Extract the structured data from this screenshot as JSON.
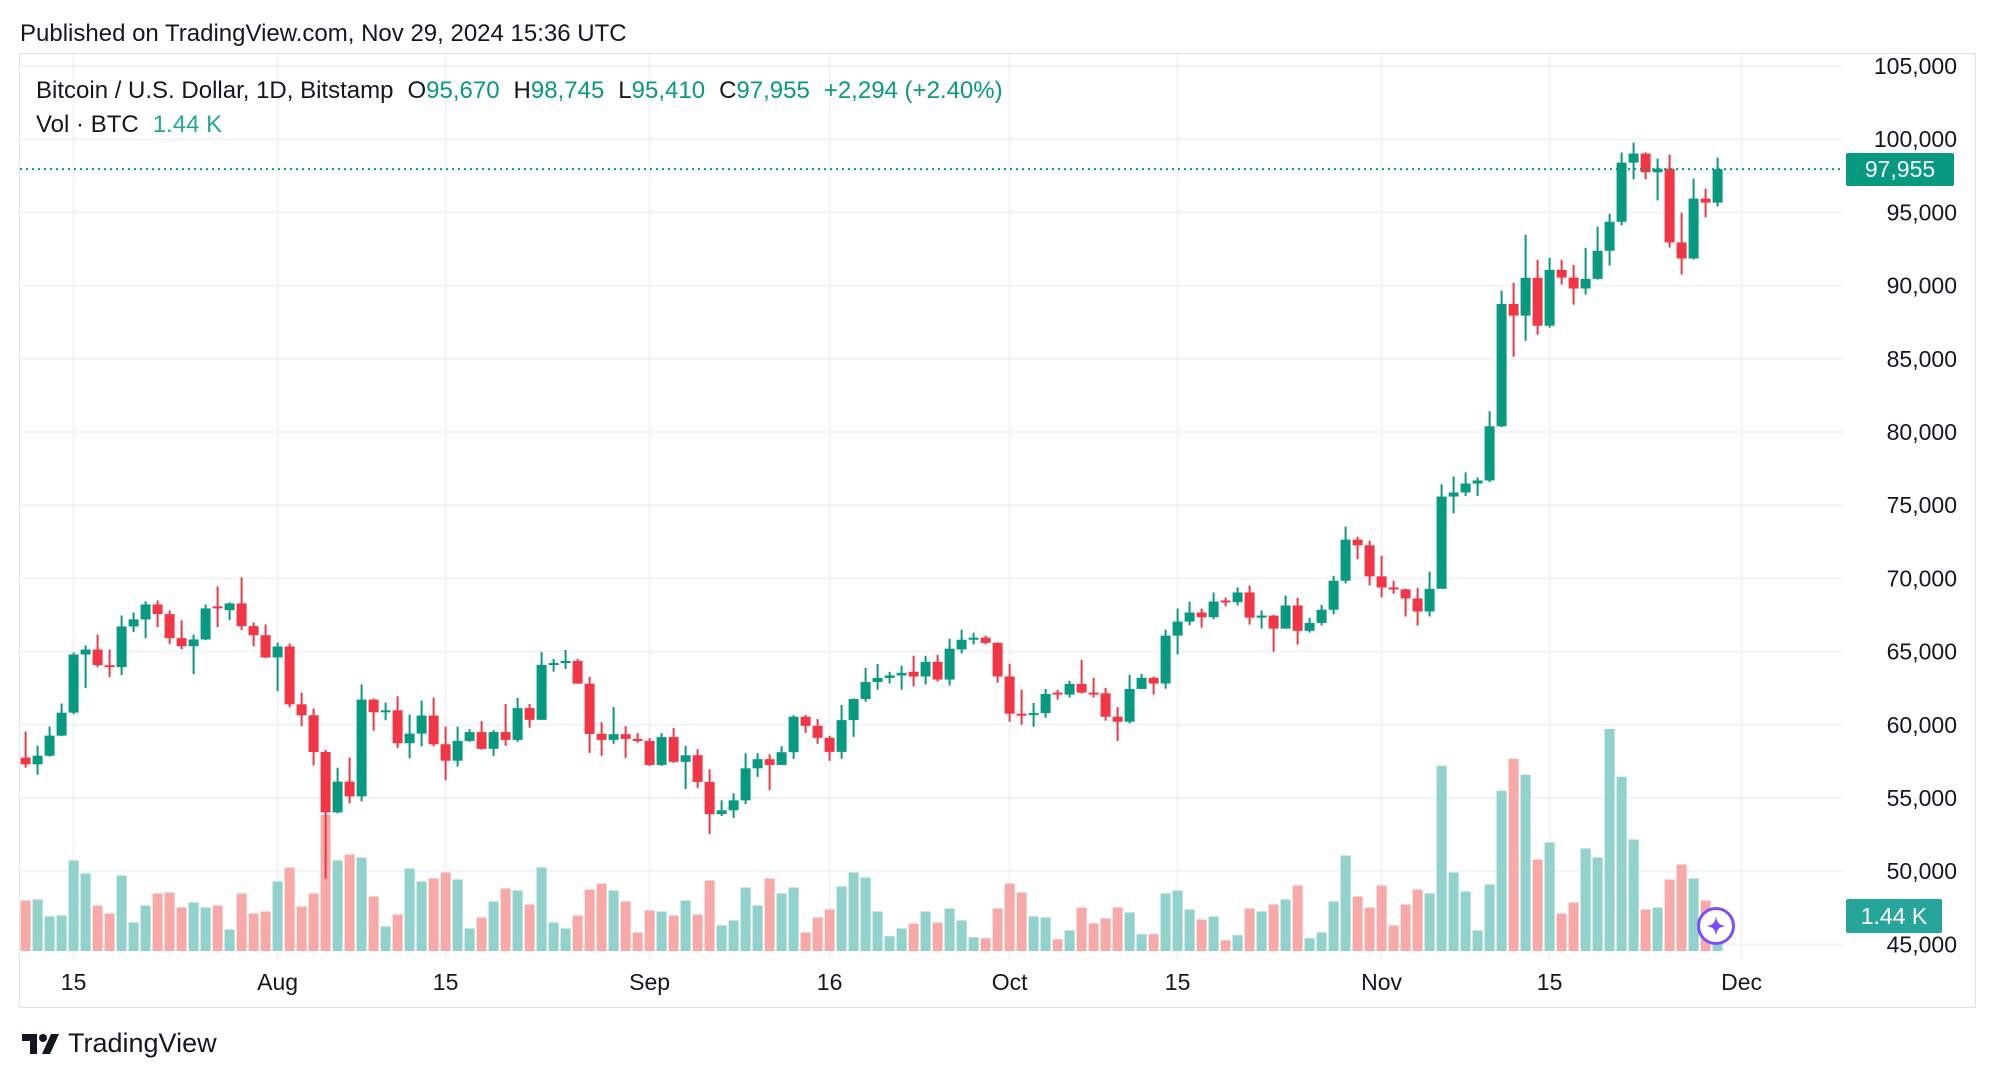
{
  "header": {
    "published": "Published on TradingView.com, Nov 29, 2024 15:36 UTC"
  },
  "legend": {
    "symbol": "Bitcoin / U.S. Dollar, 1D, Bitstamp",
    "open_key": "O",
    "open": "95,670",
    "high_key": "H",
    "high": "98,745",
    "low_key": "L",
    "low": "95,410",
    "close_key": "C",
    "close": "97,955",
    "change": "+2,294 (+2.40%)",
    "volume_label": "Vol · BTC",
    "volume_value": "1.44 K"
  },
  "price_tag": "97,955",
  "volume_tag": "1.44 K",
  "brand": {
    "name": "TradingView"
  },
  "colors": {
    "up": "#089981",
    "down": "#f23645",
    "volume_up": "#92d2cc",
    "volume_down": "#f7a9a7",
    "grid": "#f0f3fa",
    "ai_button": "#7b4dff"
  },
  "icons": {
    "ai_button": "sparkle-icon",
    "logo": "tradingview-logo-icon"
  },
  "chart_data": {
    "type": "candlestick",
    "title": "Bitcoin / U.S. Dollar, 1D, Bitstamp",
    "ylim": [
      45000,
      105000
    ],
    "grid": true,
    "last_price": 97955,
    "y_ticks": [
      "105,000",
      "100,000",
      "95,000",
      "90,000",
      "85,000",
      "80,000",
      "75,000",
      "70,000",
      "65,000",
      "60,000",
      "55,000",
      "50,000",
      "45,000"
    ],
    "x_ticks": [
      {
        "label": "15",
        "date": "2024-07-15"
      },
      {
        "label": "Aug",
        "date": "2024-08-01"
      },
      {
        "label": "15",
        "date": "2024-08-15"
      },
      {
        "label": "Sep",
        "date": "2024-09-01"
      },
      {
        "label": "16",
        "date": "2024-09-16"
      },
      {
        "label": "Oct",
        "date": "2024-10-01"
      },
      {
        "label": "15",
        "date": "2024-10-15"
      },
      {
        "label": "Nov",
        "date": "2024-11-01"
      },
      {
        "label": "15",
        "date": "2024-11-15"
      },
      {
        "label": "Dec",
        "date": "2024-12-01"
      }
    ],
    "columns": [
      "date",
      "open",
      "high",
      "low",
      "close",
      "volume_k"
    ],
    "rows": [
      [
        "2024-07-11",
        57760,
        59540,
        57070,
        57300,
        2.02
      ],
      [
        "2024-07-12",
        57300,
        58580,
        56590,
        57890,
        2.06
      ],
      [
        "2024-07-13",
        57890,
        59880,
        57830,
        59260,
        1.38
      ],
      [
        "2024-07-14",
        59260,
        61450,
        59220,
        60830,
        1.42
      ],
      [
        "2024-07-15",
        60830,
        64940,
        60720,
        64800,
        3.62
      ],
      [
        "2024-07-16",
        64800,
        65420,
        62500,
        65140,
        3.1
      ],
      [
        "2024-07-17",
        65140,
        66170,
        63940,
        64070,
        1.82
      ],
      [
        "2024-07-18",
        64070,
        65140,
        63250,
        63940,
        1.5
      ],
      [
        "2024-07-19",
        63940,
        67470,
        63390,
        66720,
        3.02
      ],
      [
        "2024-07-20",
        66720,
        67670,
        66330,
        67200,
        1.14
      ],
      [
        "2024-07-21",
        67200,
        68430,
        65920,
        68220,
        1.82
      ],
      [
        "2024-07-22",
        68220,
        68500,
        66670,
        67560,
        2.3
      ],
      [
        "2024-07-23",
        67560,
        67810,
        65510,
        65920,
        2.34
      ],
      [
        "2024-07-24",
        65920,
        67130,
        65170,
        65370,
        1.74
      ],
      [
        "2024-07-25",
        65370,
        66170,
        63460,
        65830,
        1.94
      ],
      [
        "2024-07-26",
        65830,
        68220,
        65780,
        67950,
        1.74
      ],
      [
        "2024-07-27",
        68090,
        69450,
        66670,
        67970,
        1.82
      ],
      [
        "2024-07-28",
        67830,
        68360,
        67150,
        68290,
        0.86
      ],
      [
        "2024-07-29",
        68290,
        70070,
        66470,
        66740,
        2.3
      ],
      [
        "2024-07-30",
        66740,
        66990,
        65370,
        66120,
        1.5
      ],
      [
        "2024-07-31",
        66120,
        66850,
        64550,
        64600,
        1.58
      ],
      [
        "2024-08-01",
        64600,
        65620,
        62290,
        65350,
        2.78
      ],
      [
        "2024-08-02",
        65350,
        65550,
        61200,
        61400,
        3.34
      ],
      [
        "2024-08-03",
        61400,
        62200,
        59900,
        60650,
        1.78
      ],
      [
        "2024-08-04",
        60650,
        61110,
        57230,
        58140,
        2.3
      ],
      [
        "2024-08-05",
        58140,
        58300,
        49500,
        54020,
        5.45
      ],
      [
        "2024-08-06",
        54020,
        57070,
        53950,
        56120,
        3.62
      ],
      [
        "2024-08-07",
        56120,
        57760,
        54630,
        55110,
        3.86
      ],
      [
        "2024-08-08",
        55110,
        62750,
        54770,
        61720,
        3.74
      ],
      [
        "2024-08-09",
        61720,
        61790,
        59600,
        60860,
        2.18
      ],
      [
        "2024-08-10",
        60860,
        61520,
        60310,
        60990,
        0.98
      ],
      [
        "2024-08-11",
        60990,
        61950,
        58400,
        58740,
        1.46
      ],
      [
        "2024-08-12",
        58740,
        60700,
        57710,
        59400,
        3.3
      ],
      [
        "2024-08-13",
        59400,
        61660,
        58530,
        60630,
        2.78
      ],
      [
        "2024-08-14",
        60630,
        61860,
        58530,
        58670,
        2.9
      ],
      [
        "2024-08-15",
        58670,
        59880,
        56210,
        57550,
        3.14
      ],
      [
        "2024-08-16",
        57550,
        59880,
        57140,
        58900,
        2.86
      ],
      [
        "2024-08-17",
        58900,
        59700,
        58840,
        59500,
        0.9
      ],
      [
        "2024-08-18",
        59500,
        60250,
        58300,
        58360,
        1.34
      ],
      [
        "2024-08-19",
        58360,
        59640,
        57880,
        59500,
        1.98
      ],
      [
        "2024-08-20",
        59500,
        61420,
        58560,
        58970,
        2.5
      ],
      [
        "2024-08-21",
        58970,
        61830,
        58840,
        61140,
        2.42
      ],
      [
        "2024-08-22",
        61140,
        61420,
        59800,
        60340,
        1.86
      ],
      [
        "2024-08-23",
        60340,
        64980,
        60340,
        64090,
        3.34
      ],
      [
        "2024-08-24",
        64090,
        64500,
        63630,
        64220,
        1.14
      ],
      [
        "2024-08-25",
        64220,
        65110,
        63810,
        64360,
        0.9
      ],
      [
        "2024-08-26",
        64360,
        64500,
        62810,
        62810,
        1.42
      ],
      [
        "2024-08-27",
        62810,
        63270,
        58080,
        59380,
        2.46
      ],
      [
        "2024-08-28",
        59380,
        60180,
        57880,
        58970,
        2.7
      ],
      [
        "2024-08-29",
        58970,
        61210,
        58700,
        59360,
        2.42
      ],
      [
        "2024-08-30",
        59360,
        59910,
        57740,
        59040,
        1.98
      ],
      [
        "2024-08-31",
        59040,
        59430,
        58770,
        58900,
        0.74
      ],
      [
        "2024-09-01",
        58900,
        59090,
        57190,
        57260,
        1.62
      ],
      [
        "2024-09-02",
        57260,
        59430,
        57190,
        59160,
        1.58
      ],
      [
        "2024-09-03",
        59160,
        59770,
        57400,
        57470,
        1.42
      ],
      [
        "2024-09-04",
        57470,
        58560,
        55620,
        57920,
        2.02
      ],
      [
        "2024-09-05",
        57920,
        58330,
        55690,
        56100,
        1.46
      ],
      [
        "2024-09-06",
        56100,
        56960,
        52540,
        53900,
        2.82
      ],
      [
        "2024-09-07",
        53900,
        54840,
        53770,
        54160,
        1.02
      ],
      [
        "2024-09-08",
        54160,
        55320,
        53630,
        54840,
        1.22
      ],
      [
        "2024-09-09",
        54840,
        58060,
        54590,
        57030,
        2.54
      ],
      [
        "2024-09-10",
        57030,
        58060,
        56440,
        57650,
        1.82
      ],
      [
        "2024-09-11",
        57650,
        57990,
        55550,
        57260,
        2.9
      ],
      [
        "2024-09-12",
        57260,
        58540,
        57260,
        58130,
        2.3
      ],
      [
        "2024-09-13",
        58130,
        60660,
        57670,
        60550,
        2.54
      ],
      [
        "2024-09-14",
        60550,
        60660,
        59450,
        59930,
        0.74
      ],
      [
        "2024-09-15",
        59930,
        60390,
        58700,
        59110,
        1.34
      ],
      [
        "2024-09-16",
        59110,
        59250,
        57540,
        58150,
        1.66
      ],
      [
        "2024-09-17",
        58150,
        61350,
        57670,
        60320,
        2.58
      ],
      [
        "2024-09-18",
        60320,
        61800,
        59180,
        61760,
        3.14
      ],
      [
        "2024-09-19",
        61760,
        63880,
        61580,
        62920,
        2.94
      ],
      [
        "2024-09-20",
        62920,
        64160,
        62400,
        63200,
        1.58
      ],
      [
        "2024-09-21",
        63200,
        63620,
        62820,
        63370,
        0.59
      ],
      [
        "2024-09-22",
        63370,
        64030,
        62400,
        63550,
        0.9
      ],
      [
        "2024-09-23",
        63620,
        64720,
        62610,
        63300,
        1.1
      ],
      [
        "2024-09-24",
        63300,
        64720,
        62750,
        64300,
        1.58
      ],
      [
        "2024-09-25",
        64300,
        64780,
        62950,
        63090,
        1.14
      ],
      [
        "2024-09-26",
        63090,
        65880,
        62680,
        65200,
        1.7
      ],
      [
        "2024-09-27",
        65150,
        66500,
        64880,
        65810,
        1.22
      ],
      [
        "2024-09-28",
        65810,
        66290,
        65490,
        65950,
        0.55
      ],
      [
        "2024-09-29",
        65950,
        66090,
        65490,
        65600,
        0.51
      ],
      [
        "2024-09-30",
        65600,
        65630,
        62880,
        63300,
        1.7
      ],
      [
        "2024-10-01",
        63300,
        64170,
        60210,
        60760,
        2.7
      ],
      [
        "2024-10-02",
        60760,
        62380,
        60000,
        60690,
        2.34
      ],
      [
        "2024-10-03",
        60690,
        61490,
        59860,
        60800,
        1.38
      ],
      [
        "2024-10-04",
        60800,
        62450,
        60480,
        62110,
        1.34
      ],
      [
        "2024-10-05",
        62200,
        62380,
        61720,
        62060,
        0.47
      ],
      [
        "2024-10-06",
        62060,
        63000,
        61860,
        62790,
        0.82
      ],
      [
        "2024-10-07",
        62790,
        64440,
        62130,
        62200,
        1.74
      ],
      [
        "2024-10-08",
        62200,
        63210,
        61860,
        62150,
        1.1
      ],
      [
        "2024-10-09",
        62150,
        62520,
        60280,
        60550,
        1.3
      ],
      [
        "2024-10-10",
        60550,
        61210,
        58900,
        60210,
        1.74
      ],
      [
        "2024-10-11",
        60210,
        63410,
        60090,
        62450,
        1.54
      ],
      [
        "2024-10-12",
        62450,
        63480,
        62450,
        63210,
        0.67
      ],
      [
        "2024-10-13",
        63210,
        63300,
        62060,
        62820,
        0.67
      ],
      [
        "2024-10-14",
        62820,
        66500,
        62470,
        66090,
        2.3
      ],
      [
        "2024-10-15",
        66090,
        67940,
        64810,
        67050,
        2.42
      ],
      [
        "2024-10-16",
        67050,
        68420,
        66800,
        67670,
        1.66
      ],
      [
        "2024-10-17",
        67670,
        67940,
        66640,
        67350,
        1.26
      ],
      [
        "2024-10-18",
        67350,
        69040,
        67210,
        68420,
        1.38
      ],
      [
        "2024-10-19",
        68490,
        68700,
        68080,
        68380,
        0.43
      ],
      [
        "2024-10-20",
        68380,
        69380,
        68150,
        69040,
        0.63
      ],
      [
        "2024-10-21",
        69040,
        69520,
        66840,
        67320,
        1.7
      ],
      [
        "2024-10-22",
        67320,
        67800,
        66570,
        67460,
        1.58
      ],
      [
        "2024-10-23",
        67460,
        67500,
        64990,
        66570,
        1.86
      ],
      [
        "2024-10-24",
        66570,
        68830,
        66570,
        68150,
        2.06
      ],
      [
        "2024-10-25",
        68150,
        68680,
        65480,
        66420,
        2.62
      ],
      [
        "2024-10-26",
        66420,
        67310,
        66300,
        66960,
        0.51
      ],
      [
        "2024-10-27",
        66960,
        68200,
        66780,
        67860,
        0.74
      ],
      [
        "2024-10-28",
        67860,
        70180,
        67540,
        69840,
        1.98
      ],
      [
        "2024-10-29",
        69840,
        73540,
        69660,
        72650,
        3.82
      ],
      [
        "2024-10-30",
        72650,
        72850,
        71300,
        72260,
        2.18
      ],
      [
        "2024-10-31",
        72260,
        72580,
        69520,
        70140,
        1.74
      ],
      [
        "2024-11-01",
        70140,
        71550,
        68700,
        69380,
        2.62
      ],
      [
        "2024-11-02",
        69380,
        69840,
        68950,
        69250,
        1.02
      ],
      [
        "2024-11-03",
        69250,
        69300,
        67400,
        68630,
        1.86
      ],
      [
        "2024-11-04",
        68630,
        69360,
        66780,
        67740,
        2.46
      ],
      [
        "2024-11-05",
        67740,
        70460,
        67400,
        69290,
        2.3
      ],
      [
        "2024-11-06",
        69290,
        76420,
        69290,
        75590,
        7.41
      ],
      [
        "2024-11-07",
        75590,
        76960,
        74450,
        75870,
        3.14
      ],
      [
        "2024-11-08",
        75870,
        77240,
        75620,
        76480,
        2.38
      ],
      [
        "2024-11-09",
        76480,
        76900,
        75620,
        76690,
        0.82
      ],
      [
        "2024-11-10",
        76690,
        81420,
        76580,
        80390,
        2.66
      ],
      [
        "2024-11-11",
        80390,
        89640,
        80340,
        88750,
        6.41
      ],
      [
        "2024-11-12",
        88750,
        90180,
        85140,
        87950,
        7.69
      ],
      [
        "2024-11-13",
        87950,
        93470,
        86230,
        90530,
        7.05
      ],
      [
        "2024-11-14",
        90530,
        91760,
        86640,
        87260,
        3.66
      ],
      [
        "2024-11-15",
        87260,
        91900,
        87120,
        91070,
        4.34
      ],
      [
        "2024-11-16",
        91070,
        91760,
        90070,
        90550,
        1.5
      ],
      [
        "2024-11-17",
        90550,
        91420,
        88700,
        89800,
        1.94
      ],
      [
        "2024-11-18",
        89800,
        92580,
        89380,
        90460,
        4.1
      ],
      [
        "2024-11-19",
        90460,
        94020,
        90410,
        92380,
        3.74
      ],
      [
        "2024-11-20",
        92380,
        94910,
        91370,
        94360,
        8.88
      ],
      [
        "2024-11-21",
        94360,
        99090,
        94110,
        98400,
        6.97
      ],
      [
        "2024-11-22",
        98400,
        99770,
        97260,
        99020,
        4.46
      ],
      [
        "2024-11-23",
        99020,
        99100,
        97260,
        97740,
        1.66
      ],
      [
        "2024-11-24",
        97740,
        98680,
        95820,
        97990,
        1.74
      ],
      [
        "2024-11-25",
        97990,
        98950,
        92600,
        92950,
        2.86
      ],
      [
        "2024-11-26",
        92950,
        94980,
        90750,
        91850,
        3.46
      ],
      [
        "2024-11-27",
        91850,
        97310,
        91780,
        95940,
        2.9
      ],
      [
        "2024-11-28",
        95940,
        96620,
        94660,
        95670,
        2.02
      ],
      [
        "2024-11-29",
        95670,
        98745,
        95410,
        97955,
        1.44
      ]
    ]
  }
}
